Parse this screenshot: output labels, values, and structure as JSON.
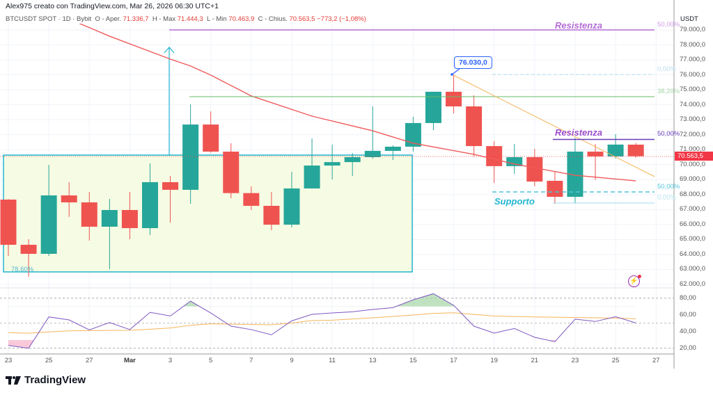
{
  "header": {
    "title": "Alex975 creato con TradingView.com, Mar 26, 2026 06:30 UTC+1",
    "symbol": "BTCUSDT SPOT · 1D · Bybit",
    "open_label": "O - Aper.",
    "open": "71.336,7",
    "high_label": "H - Max",
    "high": "71.444,3",
    "low_label": "L - Min",
    "low": "70.463,9",
    "close_label": "C - Chius.",
    "close": "70.563,5",
    "change": "−773,2 (−1,08%)"
  },
  "price_axis": {
    "currency": "USDT",
    "labels": [
      "79.000,0",
      "78.000,0",
      "77.000,0",
      "76.000,0",
      "75.000,0",
      "74.000,0",
      "73.000,0",
      "72.000,0",
      "71.000,0",
      "70.000,0",
      "69.000,0",
      "68.000,0",
      "67.000,0",
      "66.000,0",
      "65.000,0",
      "64.000,0",
      "63.000,0",
      "62.000,0"
    ],
    "last_price": "70.563,5"
  },
  "rsi_axis": {
    "labels": [
      "80,00",
      "60,00",
      "40,00",
      "20,00"
    ]
  },
  "time_axis": {
    "labels": [
      "23",
      "25",
      "27",
      "Mar",
      "3",
      "5",
      "7",
      "9",
      "11",
      "13",
      "15",
      "17",
      "19",
      "21",
      "23",
      "25",
      "27"
    ]
  },
  "drawings": {
    "resistance_top_label": "Resistenza",
    "resistance_top_pct": "50,00%",
    "peak_callout": "76.030,0",
    "peak_pct": "0,00%",
    "fib_382_pct": "38,20%",
    "resistance_label": "Resistenza",
    "resistance_pct": "50,00%",
    "support_label": "Supporto",
    "support_pct": "50,00%",
    "support_low_pct": "0,00%",
    "box_pct": "78,60%"
  },
  "colors": {
    "up": "#26a69a",
    "down": "#ef5350",
    "ma": "#f05a5a",
    "rsi": "#7e57c2",
    "rsi_ma": "#f5b55a",
    "box": "#22b5d0",
    "resistance": "#b46cd6",
    "resistance2": "#673ab7",
    "fib382": "#66bb6a",
    "trend": "#f5b55a"
  },
  "icons": {
    "alert": "lightning-icon",
    "logo": "tradingview-logo"
  },
  "brand": "TradingView",
  "chart_data": [
    {
      "type": "candlestick",
      "title": "BTCUSDT SPOT · 1D · Bybit",
      "ylabel": "USDT",
      "ylim": [
        62000,
        79000
      ],
      "columns": [
        "date",
        "open",
        "high",
        "low",
        "close"
      ],
      "candles": [
        [
          "2026-02-23",
          67667,
          67700,
          63905,
          64648
        ],
        [
          "2026-02-24",
          64648,
          65020,
          62510,
          64044
        ],
        [
          "2026-02-25",
          64044,
          69990,
          63900,
          67945
        ],
        [
          "2026-02-26",
          67945,
          68830,
          66510,
          67480
        ],
        [
          "2026-02-27",
          67480,
          68180,
          64930,
          65855
        ],
        [
          "2026-02-28",
          65855,
          67710,
          63020,
          66970
        ],
        [
          "2026-03-01",
          66970,
          68180,
          65020,
          65760
        ],
        [
          "2026-03-02",
          65760,
          70080,
          65300,
          68830
        ],
        [
          "2026-03-03",
          68830,
          69250,
          66130,
          68320
        ],
        [
          "2026-03-04",
          68320,
          74030,
          67390,
          72680
        ],
        [
          "2026-03-05",
          72680,
          73560,
          70800,
          70870
        ],
        [
          "2026-03-06",
          70870,
          71430,
          67760,
          68100
        ],
        [
          "2026-03-07",
          68100,
          68550,
          66970,
          67250
        ],
        [
          "2026-03-08",
          67250,
          68180,
          65620,
          65990
        ],
        [
          "2026-03-09",
          65990,
          69520,
          65810,
          68410
        ],
        [
          "2026-03-10",
          68410,
          71750,
          68400,
          69940
        ],
        [
          "2026-03-11",
          69940,
          71340,
          69010,
          70170
        ],
        [
          "2026-03-12",
          70170,
          70780,
          69250,
          70500
        ],
        [
          "2026-03-13",
          70500,
          73890,
          70400,
          70920
        ],
        [
          "2026-03-14",
          70920,
          71290,
          70310,
          71200
        ],
        [
          "2026-03-15",
          71200,
          73190,
          70870,
          72780
        ],
        [
          "2026-03-16",
          72780,
          74870,
          72310,
          74870
        ],
        [
          "2026-03-17",
          74870,
          76030,
          73430,
          73890
        ],
        [
          "2026-03-18",
          73890,
          74630,
          70550,
          71240
        ],
        [
          "2026-03-19",
          71240,
          71570,
          68780,
          69900
        ],
        [
          "2026-03-20",
          69900,
          71380,
          69380,
          70500
        ],
        [
          "2026-03-21",
          70500,
          71060,
          68550,
          68870
        ],
        [
          "2026-03-22",
          68920,
          69570,
          67390,
          67850
        ],
        [
          "2026-03-23",
          67850,
          71800,
          67430,
          70870
        ],
        [
          "2026-03-24",
          70870,
          71380,
          68970,
          70550
        ],
        [
          "2026-03-25",
          70550,
          72030,
          70410,
          71340
        ],
        [
          "2026-03-26",
          71336.7,
          71444.3,
          70463.9,
          70563.5
        ]
      ],
      "moving_average": [
        [
          "2026-02-25",
          80300
        ],
        [
          "2026-02-28",
          78580
        ],
        [
          "2026-03-03",
          77050
        ],
        [
          "2026-03-04",
          76590
        ],
        [
          "2026-03-05",
          75980
        ],
        [
          "2026-03-07",
          74590
        ],
        [
          "2026-03-10",
          73240
        ],
        [
          "2026-03-13",
          72260
        ],
        [
          "2026-03-15",
          71430
        ],
        [
          "2026-03-18",
          70690
        ],
        [
          "2026-03-20",
          70040
        ],
        [
          "2026-03-23",
          69290
        ],
        [
          "2026-03-26",
          68920
        ]
      ],
      "levels": {
        "resistance_top": 79000,
        "peak": 76030,
        "fib_382": 74600,
        "resistance": 71700,
        "support": 68200,
        "support_low": 67450,
        "box_top": 70650,
        "box_bottom": 62800
      }
    },
    {
      "type": "line",
      "title": "RSI",
      "ylim": [
        10,
        90
      ],
      "bands": [
        20,
        50,
        80
      ],
      "x": [
        "02-23",
        "02-24",
        "02-25",
        "02-26",
        "02-27",
        "02-28",
        "03-01",
        "03-02",
        "03-03",
        "03-04",
        "03-05",
        "03-06",
        "03-07",
        "03-08",
        "03-09",
        "03-10",
        "03-11",
        "03-12",
        "03-13",
        "03-14",
        "03-15",
        "03-16",
        "03-17",
        "03-18",
        "03-19",
        "03-20",
        "03-21",
        "03-22",
        "03-23",
        "03-24",
        "03-25",
        "03-26"
      ],
      "series": [
        {
          "values": [
            23.3,
            20,
            57.5,
            53.9,
            42,
            50.8,
            42.3,
            63,
            58.6,
            76.4,
            62.2,
            46.4,
            42.3,
            36.1,
            52.8,
            60.6,
            62.2,
            63.6,
            66.4,
            68.6,
            78,
            85.3,
            71.4,
            46.4,
            38.1,
            43.6,
            33.1,
            27.8,
            54.8,
            52,
            57.8,
            50.3
          ]
        },
        {
          "values": [
            38.6,
            38,
            39.5,
            40.8,
            41.1,
            41.3,
            41.4,
            42.8,
            44.2,
            47.5,
            49.2,
            48.8,
            48.4,
            48.1,
            50.3,
            53.1,
            53.6,
            55,
            56.4,
            58.1,
            59.8,
            61.7,
            62.5,
            60.5,
            58.6,
            58,
            57.5,
            57.1,
            56.7,
            56.4,
            56.1,
            55.3
          ]
        }
      ]
    }
  ]
}
